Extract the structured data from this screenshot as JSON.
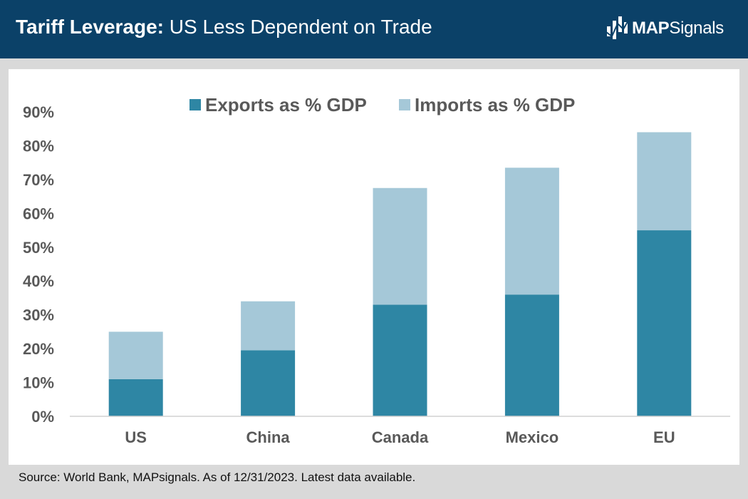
{
  "header": {
    "title_bold": "Tariff Leverage:",
    "title_rest": " US Less Dependent on Trade",
    "background": "#0b4168"
  },
  "logo": {
    "text_bold": "MAP",
    "text_rest": "Signals",
    "icon": "bar-signal-icon"
  },
  "footer": {
    "source": "Source: World Bank, MAPsignals. As of 12/31/2023. Latest data available."
  },
  "chart_data": {
    "type": "bar",
    "stacked": true,
    "categories": [
      "US",
      "China",
      "Canada",
      "Mexico",
      "EU"
    ],
    "series": [
      {
        "name": "Exports as % GDP",
        "values": [
          11,
          19.5,
          33,
          36,
          55
        ],
        "color": "#2e86a4"
      },
      {
        "name": "Imports as % GDP",
        "values": [
          14,
          14.5,
          34.5,
          37.5,
          29
        ],
        "color": "#a5c8d8"
      }
    ],
    "yticks": [
      "0%",
      "10%",
      "20%",
      "30%",
      "40%",
      "50%",
      "60%",
      "70%",
      "80%",
      "90%"
    ],
    "ylim": [
      0,
      90
    ],
    "grid": false,
    "legend_position": "top"
  }
}
